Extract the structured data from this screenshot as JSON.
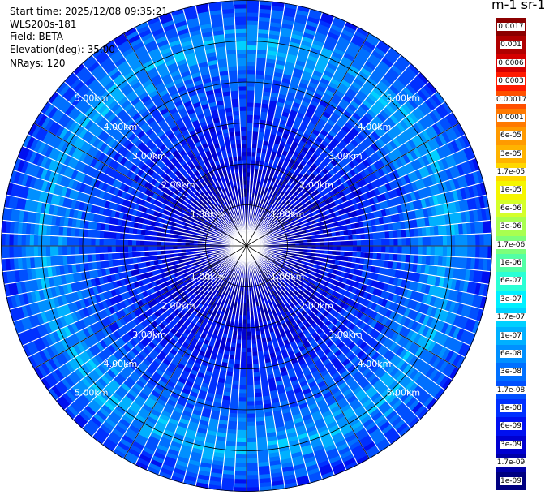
{
  "info": {
    "start_time": "Start time: 2025/12/08 09:35:21",
    "instrument": "WLS200s-181",
    "field": "Field: BETA",
    "elevation": "Elevation(deg): 35.00",
    "nrays": "NRays: 120"
  },
  "units_label": "m-1 sr-1",
  "colorbar": {
    "labels": [
      "0.0017",
      "0.001",
      "0.0006",
      "0.0003",
      "0.00017",
      "0.0001",
      "6e-05",
      "3e-05",
      "1.7e-05",
      "1e-05",
      "6e-06",
      "3e-06",
      "1.7e-06",
      "1e-06",
      "6e-07",
      "3e-07",
      "1.7e-07",
      "1e-07",
      "6e-08",
      "3e-08",
      "1.7e-08",
      "1e-08",
      "6e-09",
      "3e-09",
      "1.7e-09",
      "1e-09"
    ],
    "colors": [
      "#8b0000",
      "#b00000",
      "#d50000",
      "#ff1a00",
      "#ff5000",
      "#ff7a00",
      "#ff9a00",
      "#ffb300",
      "#ffd700",
      "#f5f500",
      "#d4ff2a",
      "#a8ff50",
      "#7dff7a",
      "#52ffa5",
      "#2affd5",
      "#00f0ff",
      "#00d0ff",
      "#00b0ff",
      "#0090ff",
      "#0070ff",
      "#0050ff",
      "#0030ff",
      "#0010f0",
      "#0000d0",
      "#0000a8",
      "#000080"
    ]
  },
  "chart_data": {
    "type": "ppi",
    "title": "",
    "field": "BETA",
    "elevation_deg": 35.0,
    "n_rays": 120,
    "max_range_km": 6.0,
    "range_rings_km": [
      1,
      2,
      3,
      4,
      5,
      6
    ],
    "ring_labels": [
      "1.00km",
      "2.00km",
      "3.00km",
      "4.00km",
      "5.00km"
    ],
    "spokes_deg": [
      0,
      30,
      60,
      90,
      120,
      150
    ],
    "range_profile_log10": [
      {
        "r_km": 0.0,
        "v": -8.8
      },
      {
        "r_km": 1.0,
        "v": -8.6
      },
      {
        "r_km": 2.0,
        "v": -8.3
      },
      {
        "r_km": 3.0,
        "v": -8.0
      },
      {
        "r_km": 4.0,
        "v": -7.7
      },
      {
        "r_km": 5.0,
        "v": -7.0
      },
      {
        "r_km": 5.5,
        "v": -7.6
      },
      {
        "r_km": 6.0,
        "v": -7.9
      }
    ],
    "colorbar_range": [
      1e-09,
      0.0017
    ],
    "grid": true
  }
}
